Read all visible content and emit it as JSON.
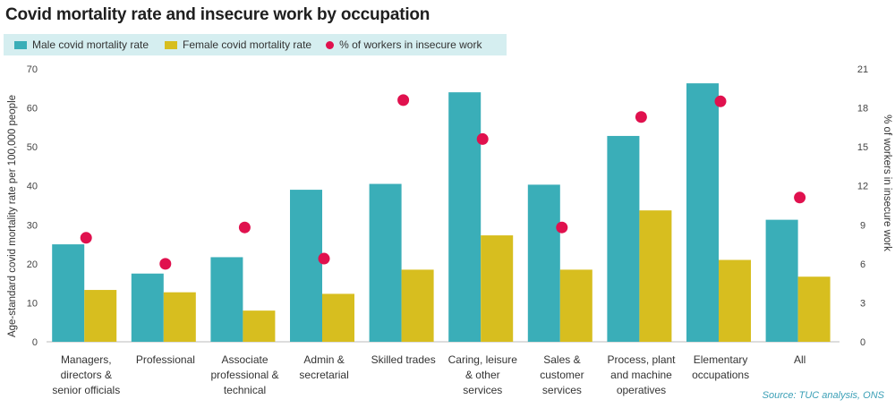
{
  "title": "Covid mortality rate and insecure work by occupation",
  "legend": {
    "male": "Male covid mortality rate",
    "female": "Female covid mortality rate",
    "insecure": "% of workers in insecure work"
  },
  "source": "Source: TUC analysis, ONS",
  "colors": {
    "male": "#3aaeb8",
    "female": "#d7be1f",
    "insecure": "#e0114e"
  },
  "chart_data": {
    "type": "bar",
    "title": "Covid mortality rate and insecure work by occupation",
    "categories": [
      [
        "Managers,",
        "directors &",
        "senior officials"
      ],
      [
        "Professional"
      ],
      [
        "Associate",
        "professional &",
        "technical"
      ],
      [
        "Admin &",
        "secretarial"
      ],
      [
        "Skilled trades"
      ],
      [
        "Caring, leisure",
        "& other",
        "services"
      ],
      [
        "Sales &",
        "customer",
        "services"
      ],
      [
        "Process, plant",
        "and machine",
        "operatives"
      ],
      [
        "Elementary",
        "occupations"
      ],
      [
        "All"
      ]
    ],
    "series": [
      {
        "name": "Male covid mortality rate",
        "type": "bar",
        "axis": "left",
        "values": [
          25.0,
          17.5,
          21.7,
          39.0,
          40.5,
          64.0,
          40.3,
          52.8,
          66.3,
          31.3
        ]
      },
      {
        "name": "Female covid mortality rate",
        "type": "bar",
        "axis": "left",
        "values": [
          13.3,
          12.7,
          8.0,
          12.3,
          18.5,
          27.3,
          18.5,
          33.7,
          21.0,
          16.7
        ]
      },
      {
        "name": "% of workers in insecure work",
        "type": "scatter",
        "axis": "right",
        "values": [
          8.0,
          6.0,
          8.8,
          6.4,
          18.6,
          15.6,
          8.8,
          17.3,
          18.5,
          11.1
        ]
      }
    ],
    "ylabel": "Age-standard covid mortality rate per 100,000 people",
    "y2label": "% of workers in insecure work",
    "ylim": [
      0,
      70
    ],
    "y2lim": [
      0,
      21
    ],
    "yticks": [
      "0",
      "10",
      "20",
      "30",
      "40",
      "50",
      "60",
      "70"
    ],
    "y2ticks": [
      "0",
      "3",
      "6",
      "9",
      "12",
      "15",
      "18",
      "21"
    ]
  }
}
